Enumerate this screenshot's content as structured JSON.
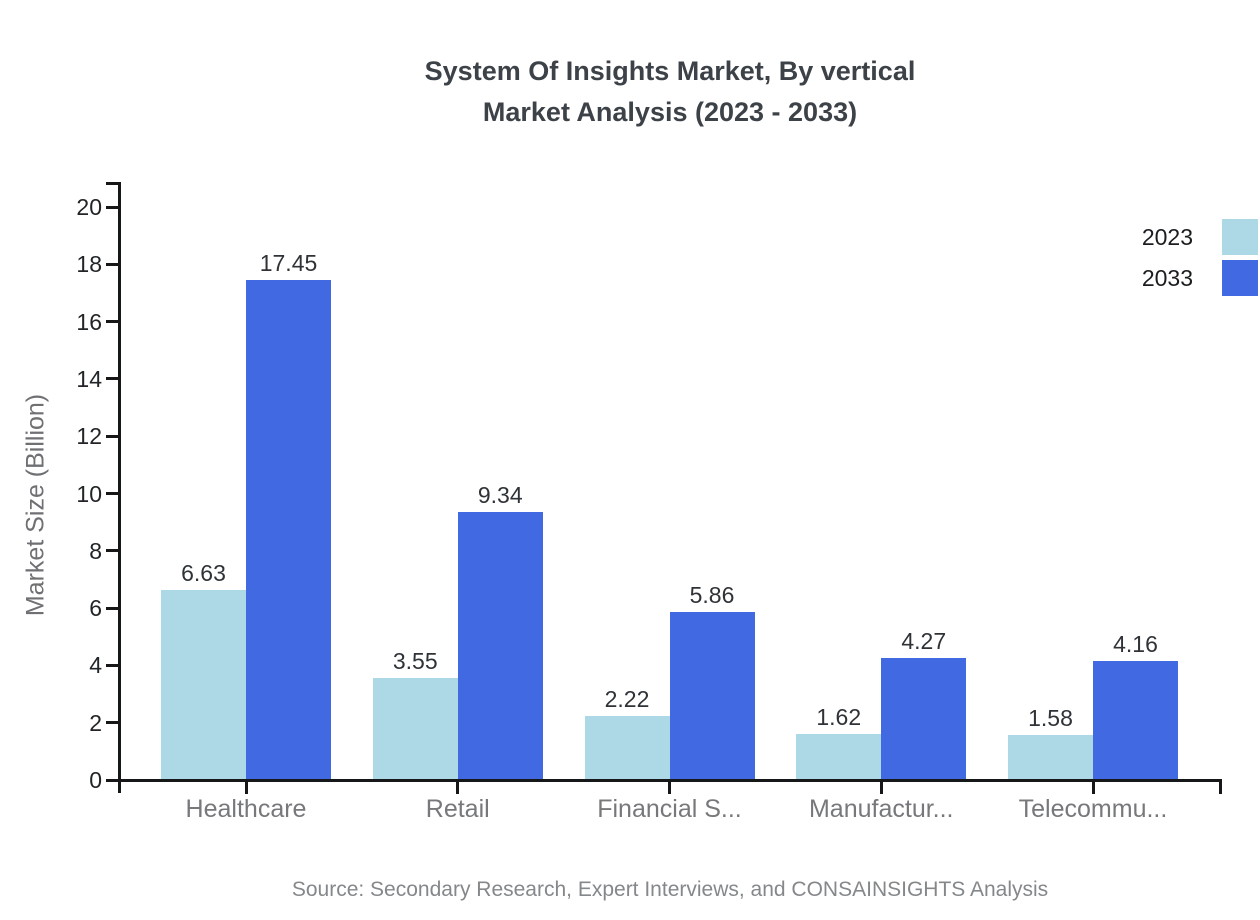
{
  "header": {
    "title_line1": "System Of Insights Market, By vertical",
    "title_line2": "Market Analysis (2023 - 2033)"
  },
  "chart_data": {
    "type": "bar",
    "title": "System Of Insights Market, By vertical Market Analysis (2023 - 2033)",
    "categories": [
      "Healthcare",
      "Retail",
      "Financial S...",
      "Manufactur...",
      "Telecommu..."
    ],
    "series": [
      {
        "name": "2023",
        "color": "#ADD8E6",
        "values": [
          6.63,
          3.55,
          2.22,
          1.62,
          1.58
        ]
      },
      {
        "name": "2033",
        "color": "#4169E1",
        "values": [
          17.45,
          9.34,
          5.86,
          4.27,
          4.16
        ]
      }
    ],
    "xlabel": "",
    "ylabel": "Market Size (Billion)",
    "ylim": [
      0,
      20
    ],
    "y_ticks": [
      0,
      2,
      4,
      6,
      8,
      10,
      12,
      14,
      16,
      18,
      20
    ],
    "grid": false,
    "legend_position": "top-right",
    "value_labels": true
  },
  "footer": {
    "source": "Source: Secondary Research, Expert Interviews, and CONSAINSIGHTS Analysis"
  }
}
